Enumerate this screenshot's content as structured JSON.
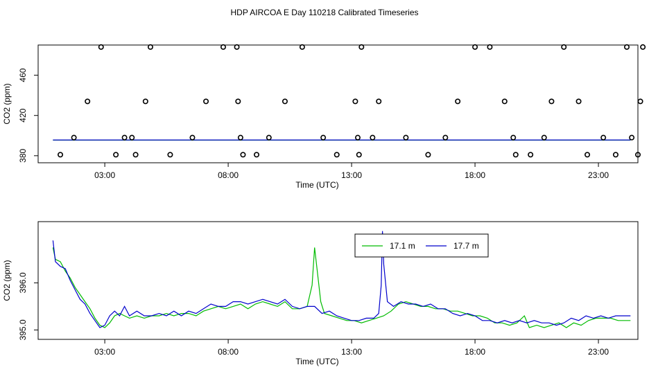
{
  "title": "HDP AIRCOA E  Day 110218  Calibrated Timeseries",
  "colors": {
    "series_a": "#00bb00",
    "series_b": "#0000cc",
    "frame": "#000000"
  },
  "chart_data": [
    {
      "type": "scatter",
      "title": "",
      "xlabel": "Time (UTC)",
      "ylabel": "CO2 (ppm)",
      "xlim": [
        0.3,
        24.6
      ],
      "ylim": [
        373,
        490
      ],
      "x_ticks": [
        {
          "value": 3,
          "label": "03:00"
        },
        {
          "value": 8,
          "label": "08:00"
        },
        {
          "value": 13,
          "label": "13:00"
        },
        {
          "value": 18,
          "label": "18:00"
        },
        {
          "value": 23,
          "label": "23:00"
        }
      ],
      "y_ticks": [
        {
          "value": 380,
          "label": "380"
        },
        {
          "value": 420,
          "label": "420"
        },
        {
          "value": 460,
          "label": "460"
        }
      ],
      "points": [
        [
          1.2,
          381
        ],
        [
          1.75,
          398
        ],
        [
          2.3,
          434
        ],
        [
          2.85,
          488
        ],
        [
          3.45,
          381
        ],
        [
          3.8,
          398
        ],
        [
          4.1,
          398
        ],
        [
          4.25,
          381
        ],
        [
          4.65,
          434
        ],
        [
          4.85,
          488
        ],
        [
          5.65,
          381
        ],
        [
          6.55,
          398
        ],
        [
          7.1,
          434
        ],
        [
          7.8,
          488
        ],
        [
          8.35,
          488
        ],
        [
          8.4,
          434
        ],
        [
          8.5,
          398
        ],
        [
          8.6,
          381
        ],
        [
          9.15,
          381
        ],
        [
          9.65,
          398
        ],
        [
          10.3,
          434
        ],
        [
          11.0,
          488
        ],
        [
          11.85,
          398
        ],
        [
          12.4,
          381
        ],
        [
          13.3,
          381
        ],
        [
          13.15,
          434
        ],
        [
          13.25,
          398
        ],
        [
          13.4,
          488
        ],
        [
          13.85,
          398
        ],
        [
          14.1,
          434
        ],
        [
          15.2,
          398
        ],
        [
          16.1,
          381
        ],
        [
          16.8,
          398
        ],
        [
          17.3,
          434
        ],
        [
          18.0,
          488
        ],
        [
          18.6,
          488
        ],
        [
          19.2,
          434
        ],
        [
          19.55,
          398
        ],
        [
          19.65,
          381
        ],
        [
          20.25,
          381
        ],
        [
          20.8,
          398
        ],
        [
          21.1,
          434
        ],
        [
          21.6,
          488
        ],
        [
          22.55,
          381
        ],
        [
          23.2,
          398
        ],
        [
          23.7,
          381
        ],
        [
          24.35,
          398
        ],
        [
          24.6,
          381
        ],
        [
          24.7,
          434
        ],
        [
          24.15,
          488
        ],
        [
          22.2,
          434
        ],
        [
          24.8,
          488
        ]
      ],
      "series": [
        {
          "name": "17.1 m",
          "color": "#00bb00",
          "y_level": 395.5
        },
        {
          "name": "17.7 m",
          "color": "#0000cc",
          "y_level": 395.6
        }
      ]
    },
    {
      "type": "line",
      "title": "",
      "xlabel": "Time (UTC)",
      "ylabel": "CO2 (ppm)",
      "xlim": [
        0.3,
        24.6
      ],
      "ylim": [
        394.8,
        397.3
      ],
      "x_ticks": [
        {
          "value": 3,
          "label": "03:00"
        },
        {
          "value": 8,
          "label": "08:00"
        },
        {
          "value": 13,
          "label": "13:00"
        },
        {
          "value": 18,
          "label": "18:00"
        },
        {
          "value": 23,
          "label": "23:00"
        }
      ],
      "y_ticks": [
        {
          "value": 395.0,
          "label": "395.0"
        },
        {
          "value": 396.0,
          "label": "396.0"
        }
      ],
      "legend": {
        "placement": "top-right-center"
      },
      "series": [
        {
          "name": "17.1 m",
          "color": "#00bb00",
          "points": [
            [
              0.9,
              396.75
            ],
            [
              1.0,
              396.5
            ],
            [
              1.2,
              396.45
            ],
            [
              1.4,
              396.25
            ],
            [
              1.6,
              396.1
            ],
            [
              1.8,
              395.9
            ],
            [
              2.0,
              395.75
            ],
            [
              2.2,
              395.6
            ],
            [
              2.4,
              395.45
            ],
            [
              2.6,
              395.25
            ],
            [
              2.8,
              395.1
            ],
            [
              3.0,
              395.05
            ],
            [
              3.2,
              395.15
            ],
            [
              3.4,
              395.3
            ],
            [
              3.6,
              395.35
            ],
            [
              3.8,
              395.3
            ],
            [
              4.0,
              395.25
            ],
            [
              4.3,
              395.3
            ],
            [
              4.6,
              395.25
            ],
            [
              4.9,
              395.3
            ],
            [
              5.2,
              395.3
            ],
            [
              5.5,
              395.35
            ],
            [
              5.8,
              395.3
            ],
            [
              6.1,
              395.35
            ],
            [
              6.4,
              395.35
            ],
            [
              6.7,
              395.3
            ],
            [
              7.0,
              395.4
            ],
            [
              7.3,
              395.45
            ],
            [
              7.6,
              395.5
            ],
            [
              7.9,
              395.45
            ],
            [
              8.2,
              395.5
            ],
            [
              8.5,
              395.55
            ],
            [
              8.8,
              395.45
            ],
            [
              9.1,
              395.55
            ],
            [
              9.4,
              395.6
            ],
            [
              9.7,
              395.55
            ],
            [
              10.0,
              395.5
            ],
            [
              10.3,
              395.6
            ],
            [
              10.6,
              395.45
            ],
            [
              10.9,
              395.45
            ],
            [
              11.2,
              395.5
            ],
            [
              11.4,
              395.95
            ],
            [
              11.5,
              396.75
            ],
            [
              11.6,
              396.3
            ],
            [
              11.75,
              395.6
            ],
            [
              11.9,
              395.35
            ],
            [
              12.2,
              395.3
            ],
            [
              12.5,
              395.25
            ],
            [
              12.8,
              395.2
            ],
            [
              13.1,
              395.2
            ],
            [
              13.4,
              395.15
            ],
            [
              13.7,
              395.2
            ],
            [
              14.0,
              395.25
            ],
            [
              14.3,
              395.3
            ],
            [
              14.6,
              395.4
            ],
            [
              14.9,
              395.55
            ],
            [
              15.2,
              395.6
            ],
            [
              15.5,
              395.55
            ],
            [
              15.8,
              395.5
            ],
            [
              16.1,
              395.5
            ],
            [
              16.4,
              395.45
            ],
            [
              16.7,
              395.45
            ],
            [
              17.0,
              395.4
            ],
            [
              17.3,
              395.4
            ],
            [
              17.6,
              395.35
            ],
            [
              17.9,
              395.3
            ],
            [
              18.2,
              395.3
            ],
            [
              18.5,
              395.25
            ],
            [
              18.8,
              395.15
            ],
            [
              19.1,
              395.15
            ],
            [
              19.4,
              395.1
            ],
            [
              19.7,
              395.15
            ],
            [
              20.0,
              395.3
            ],
            [
              20.2,
              395.05
            ],
            [
              20.5,
              395.1
            ],
            [
              20.8,
              395.05
            ],
            [
              21.1,
              395.1
            ],
            [
              21.4,
              395.15
            ],
            [
              21.7,
              395.05
            ],
            [
              22.0,
              395.15
            ],
            [
              22.3,
              395.1
            ],
            [
              22.6,
              395.2
            ],
            [
              22.9,
              395.25
            ],
            [
              23.2,
              395.25
            ],
            [
              23.5,
              395.25
            ],
            [
              23.8,
              395.2
            ],
            [
              24.1,
              395.2
            ],
            [
              24.3,
              395.2
            ]
          ]
        },
        {
          "name": "17.7 m",
          "color": "#0000cc",
          "points": [
            [
              0.9,
              396.9
            ],
            [
              1.0,
              396.45
            ],
            [
              1.2,
              396.35
            ],
            [
              1.4,
              396.3
            ],
            [
              1.6,
              396.05
            ],
            [
              1.8,
              395.85
            ],
            [
              2.0,
              395.65
            ],
            [
              2.2,
              395.55
            ],
            [
              2.4,
              395.35
            ],
            [
              2.6,
              395.2
            ],
            [
              2.8,
              395.05
            ],
            [
              3.0,
              395.1
            ],
            [
              3.2,
              395.3
            ],
            [
              3.4,
              395.4
            ],
            [
              3.6,
              395.3
            ],
            [
              3.8,
              395.5
            ],
            [
              4.0,
              395.3
            ],
            [
              4.3,
              395.4
            ],
            [
              4.6,
              395.3
            ],
            [
              4.9,
              395.3
            ],
            [
              5.2,
              395.35
            ],
            [
              5.5,
              395.3
            ],
            [
              5.8,
              395.4
            ],
            [
              6.1,
              395.3
            ],
            [
              6.4,
              395.4
            ],
            [
              6.7,
              395.35
            ],
            [
              7.0,
              395.45
            ],
            [
              7.3,
              395.55
            ],
            [
              7.6,
              395.5
            ],
            [
              7.9,
              395.5
            ],
            [
              8.2,
              395.6
            ],
            [
              8.5,
              395.6
            ],
            [
              8.8,
              395.55
            ],
            [
              9.1,
              395.6
            ],
            [
              9.4,
              395.65
            ],
            [
              9.7,
              395.6
            ],
            [
              10.0,
              395.55
            ],
            [
              10.3,
              395.65
            ],
            [
              10.6,
              395.5
            ],
            [
              10.9,
              395.45
            ],
            [
              11.2,
              395.5
            ],
            [
              11.5,
              395.5
            ],
            [
              11.8,
              395.35
            ],
            [
              12.1,
              395.4
            ],
            [
              12.4,
              395.3
            ],
            [
              12.7,
              395.25
            ],
            [
              13.0,
              395.2
            ],
            [
              13.3,
              395.2
            ],
            [
              13.6,
              395.25
            ],
            [
              13.9,
              395.25
            ],
            [
              14.1,
              395.35
            ],
            [
              14.2,
              395.95
            ],
            [
              14.25,
              397.1
            ],
            [
              14.3,
              396.4
            ],
            [
              14.45,
              395.6
            ],
            [
              14.7,
              395.5
            ],
            [
              15.0,
              395.6
            ],
            [
              15.3,
              395.55
            ],
            [
              15.6,
              395.55
            ],
            [
              15.9,
              395.5
            ],
            [
              16.2,
              395.55
            ],
            [
              16.5,
              395.45
            ],
            [
              16.8,
              395.45
            ],
            [
              17.1,
              395.35
            ],
            [
              17.4,
              395.3
            ],
            [
              17.7,
              395.35
            ],
            [
              18.0,
              395.3
            ],
            [
              18.3,
              395.2
            ],
            [
              18.6,
              395.2
            ],
            [
              18.9,
              395.15
            ],
            [
              19.2,
              395.2
            ],
            [
              19.5,
              395.15
            ],
            [
              19.8,
              395.2
            ],
            [
              20.1,
              395.15
            ],
            [
              20.4,
              395.2
            ],
            [
              20.7,
              395.15
            ],
            [
              21.0,
              395.15
            ],
            [
              21.3,
              395.1
            ],
            [
              21.6,
              395.15
            ],
            [
              21.9,
              395.25
            ],
            [
              22.2,
              395.2
            ],
            [
              22.5,
              395.3
            ],
            [
              22.8,
              395.25
            ],
            [
              23.1,
              395.3
            ],
            [
              23.4,
              395.25
            ],
            [
              23.7,
              395.3
            ],
            [
              24.0,
              395.3
            ],
            [
              24.3,
              395.3
            ]
          ]
        }
      ]
    }
  ]
}
